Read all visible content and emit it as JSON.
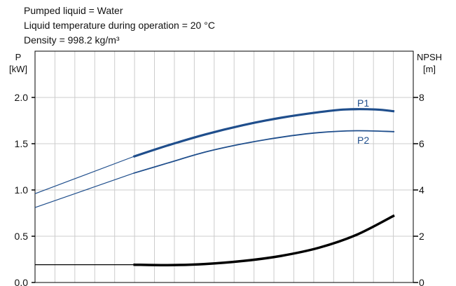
{
  "notes": [
    "Pumped liquid = Water",
    "Liquid temperature during operation = 20 °C",
    "Density = 998.2 kg/m³"
  ],
  "chart_data": {
    "type": "line",
    "left_axis": {
      "label_line1": "P",
      "label_line2": "[kW]",
      "ylim": [
        0,
        2.5
      ],
      "ticks": [
        0.0,
        0.5,
        1.0,
        1.5,
        2.0
      ],
      "tick_labels": [
        "0.0",
        "0.5",
        "1.0",
        "1.5",
        "2.0"
      ]
    },
    "right_axis": {
      "label_line1": "NPSH",
      "label_line2": "[m]",
      "ylim": [
        0,
        10
      ],
      "ticks": [
        0,
        2,
        4,
        6,
        8
      ],
      "tick_labels": [
        "0",
        "2",
        "4",
        "6",
        "8"
      ]
    },
    "x_domain": [
      0,
      1
    ],
    "x_gridlines": 19,
    "grid": true,
    "colors": {
      "power": "#1f4e8c",
      "npsh": "#000000",
      "grid": "#cccccc"
    },
    "series": [
      {
        "name": "P1",
        "axis": "left",
        "color": "#1f4e8c",
        "values": [
          [
            0,
            0.96
          ],
          [
            0.26,
            1.36
          ],
          [
            0.35,
            1.48
          ],
          [
            0.45,
            1.6
          ],
          [
            0.55,
            1.7
          ],
          [
            0.65,
            1.78
          ],
          [
            0.75,
            1.84
          ],
          [
            0.82,
            1.87
          ],
          [
            0.9,
            1.87
          ],
          [
            0.95,
            1.85
          ]
        ],
        "emphasis_from": 0.26
      },
      {
        "name": "P2",
        "axis": "left",
        "color": "#1f4e8c",
        "values": [
          [
            0,
            0.81
          ],
          [
            0.26,
            1.18
          ],
          [
            0.35,
            1.29
          ],
          [
            0.45,
            1.41
          ],
          [
            0.55,
            1.5
          ],
          [
            0.65,
            1.57
          ],
          [
            0.75,
            1.62
          ],
          [
            0.85,
            1.64
          ],
          [
            0.95,
            1.63
          ]
        ],
        "emphasis_from": 0.26
      },
      {
        "axis": "right",
        "color": "#000000",
        "values": [
          [
            0,
            0.77
          ],
          [
            0.26,
            0.77
          ],
          [
            0.35,
            0.75
          ],
          [
            0.45,
            0.8
          ],
          [
            0.55,
            0.93
          ],
          [
            0.65,
            1.15
          ],
          [
            0.75,
            1.5
          ],
          [
            0.85,
            2.06
          ],
          [
            0.95,
            2.9
          ]
        ],
        "emphasis_from": 0.26
      }
    ]
  }
}
